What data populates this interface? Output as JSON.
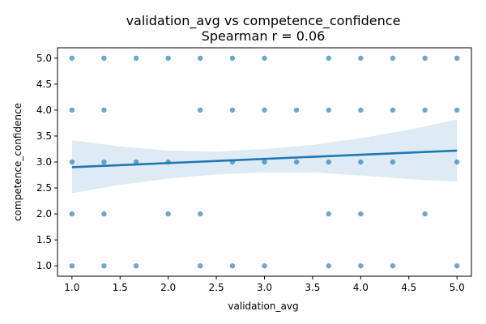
{
  "chart_data": {
    "type": "scatter",
    "title": "validation_avg vs competence_confidence",
    "subtitle": "Spearman r = 0.06",
    "xlabel": "validation_avg",
    "ylabel": "competence_confidence",
    "xlim": [
      0.85,
      5.15
    ],
    "ylim": [
      0.8,
      5.2
    ],
    "xticks": [
      1.0,
      1.5,
      2.0,
      2.5,
      3.0,
      3.5,
      4.0,
      4.5,
      5.0
    ],
    "yticks": [
      1.0,
      1.5,
      2.0,
      2.5,
      3.0,
      3.5,
      4.0,
      4.5,
      5.0
    ],
    "xtick_labels": [
      "1.0",
      "1.5",
      "2.0",
      "2.5",
      "3.0",
      "3.5",
      "4.0",
      "4.5",
      "5.0"
    ],
    "ytick_labels": [
      "1.0",
      "1.5",
      "2.0",
      "2.5",
      "3.0",
      "3.5",
      "4.0",
      "4.5",
      "5.0"
    ],
    "grid": false,
    "point_color": "#1f77b4",
    "line_color": "#1f77b4",
    "ci_color": "#1f77b4",
    "points": [
      [
        1.0,
        5.0
      ],
      [
        1.333,
        5.0
      ],
      [
        1.667,
        5.0
      ],
      [
        2.0,
        5.0
      ],
      [
        2.333,
        5.0
      ],
      [
        2.667,
        5.0
      ],
      [
        3.0,
        5.0
      ],
      [
        3.667,
        5.0
      ],
      [
        4.0,
        5.0
      ],
      [
        4.333,
        5.0
      ],
      [
        4.667,
        5.0
      ],
      [
        5.0,
        5.0
      ],
      [
        1.0,
        4.0
      ],
      [
        1.333,
        4.0
      ],
      [
        2.333,
        4.0
      ],
      [
        2.667,
        4.0
      ],
      [
        3.0,
        4.0
      ],
      [
        3.333,
        4.0
      ],
      [
        3.667,
        4.0
      ],
      [
        4.0,
        4.0
      ],
      [
        4.333,
        4.0
      ],
      [
        4.667,
        4.0
      ],
      [
        5.0,
        4.0
      ],
      [
        1.0,
        3.0
      ],
      [
        1.333,
        3.0
      ],
      [
        1.667,
        3.0
      ],
      [
        2.0,
        3.0
      ],
      [
        2.667,
        3.0
      ],
      [
        3.0,
        3.0
      ],
      [
        3.333,
        3.0
      ],
      [
        3.667,
        3.0
      ],
      [
        4.0,
        3.0
      ],
      [
        4.333,
        3.0
      ],
      [
        5.0,
        3.0
      ],
      [
        1.0,
        2.0
      ],
      [
        1.333,
        2.0
      ],
      [
        2.0,
        2.0
      ],
      [
        2.333,
        2.0
      ],
      [
        3.667,
        2.0
      ],
      [
        4.0,
        2.0
      ],
      [
        4.667,
        2.0
      ],
      [
        1.0,
        1.0
      ],
      [
        1.333,
        1.0
      ],
      [
        1.667,
        1.0
      ],
      [
        2.333,
        1.0
      ],
      [
        2.667,
        1.0
      ],
      [
        3.0,
        1.0
      ],
      [
        3.667,
        1.0
      ],
      [
        4.0,
        1.0
      ],
      [
        4.333,
        1.0
      ],
      [
        5.0,
        1.0
      ]
    ],
    "regression": {
      "x": [
        1.0,
        5.0
      ],
      "y": [
        2.9,
        3.22
      ]
    },
    "ci_band": {
      "x": [
        1.0,
        1.5,
        2.0,
        2.5,
        3.0,
        3.5,
        4.0,
        4.5,
        5.0
      ],
      "upper": [
        3.42,
        3.3,
        3.22,
        3.2,
        3.25,
        3.33,
        3.46,
        3.62,
        3.82
      ],
      "lower": [
        2.4,
        2.56,
        2.68,
        2.76,
        2.8,
        2.8,
        2.74,
        2.67,
        2.62
      ]
    }
  }
}
